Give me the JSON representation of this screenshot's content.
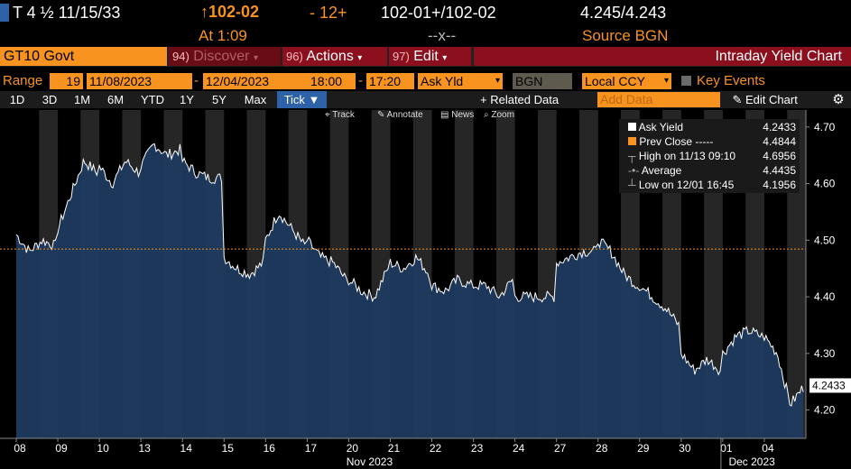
{
  "quote": {
    "security_desc": "T 4 ½  11/15/33",
    "price": "↑102-02",
    "change": "- 12+",
    "bid_ask": "102-01+/102-02",
    "yield_bid_ask": "4.245/4.243",
    "time": "At 1:09",
    "size": "--x--",
    "source": "Source BGN"
  },
  "toolbar": {
    "security": "GT10 Govt",
    "discover_num": "94)",
    "discover_label": "Discover",
    "actions_num": "96)",
    "actions_label": "Actions",
    "edit_num": "97)",
    "edit_label": "Edit",
    "title": "Intraday Yield Chart"
  },
  "range": {
    "label": "Range",
    "days": "19",
    "start_date": "11/08/2023",
    "end_date": "12/04/2023",
    "start_time": "18:00",
    "end_time": "17:20",
    "field": "Ask Yld",
    "source": "BGN",
    "currency": "Local CCY",
    "key_events": "Key Events"
  },
  "periods": [
    "1D",
    "3D",
    "1M",
    "6M",
    "YTD",
    "1Y",
    "5Y",
    "Max"
  ],
  "active_period": "Tick",
  "related_data": "+ Related Data",
  "add_data_placeholder": "Add Data",
  "edit_chart": "Edit Chart",
  "chart_tools": [
    "Track",
    "Annotate",
    "News",
    "Zoom"
  ],
  "legend": {
    "ask_yield_label": "Ask Yield",
    "ask_yield_value": "4.2433",
    "prev_close_label": "Prev Close -----",
    "prev_close_value": "4.4844",
    "high_label": "High on 11/13 09:10",
    "high_value": "4.6956",
    "average_label": "Average",
    "average_value": "4.4435",
    "low_label": "Low on 12/01 16:45",
    "low_value": "4.1956"
  },
  "colors": {
    "accent_orange": "#f7931e",
    "toolbar_red": "#8b0f1c",
    "area_fill": "#1e3a5f",
    "line": "#ffffff",
    "prev_close": "#f7931e",
    "session_shade": "#262626"
  },
  "chart_data": {
    "type": "area",
    "series": [
      {
        "name": "Ask Yield",
        "values": []
      }
    ],
    "x_day_labels": [
      "08",
      "09",
      "10",
      "13",
      "14",
      "15",
      "16",
      "17",
      "20",
      "21",
      "22",
      "23",
      "24",
      "27",
      "28",
      "29",
      "30",
      "01",
      "04"
    ],
    "month_labels": [
      "Nov 2023",
      "Dec 2023"
    ],
    "daily_profile": [
      [
        4.51,
        4.48,
        4.5,
        4.49
      ],
      [
        4.52,
        4.58,
        4.64,
        4.62
      ],
      [
        4.63,
        4.6,
        4.64,
        4.62
      ],
      [
        4.63,
        4.67,
        4.65,
        4.66
      ],
      [
        4.64,
        4.62,
        4.61,
        4.61
      ],
      [
        4.47,
        4.45,
        4.44,
        4.46
      ],
      [
        4.5,
        4.55,
        4.52,
        4.49
      ],
      [
        4.5,
        4.47,
        4.46,
        4.43
      ],
      [
        4.43,
        4.41,
        4.4,
        4.45
      ],
      [
        4.46,
        4.45,
        4.47,
        4.44
      ],
      [
        4.42,
        4.41,
        4.43,
        4.42
      ],
      [
        4.42,
        4.42,
        4.4,
        4.43
      ],
      [
        4.4,
        4.4,
        4.4,
        4.4
      ],
      [
        4.46,
        4.47,
        4.48,
        4.48
      ],
      [
        4.5,
        4.48,
        4.44,
        4.42
      ],
      [
        4.42,
        4.4,
        4.38,
        4.35
      ],
      [
        4.3,
        4.27,
        4.29,
        4.27
      ],
      [
        4.3,
        4.33,
        4.34,
        4.33
      ],
      [
        4.33,
        4.3,
        4.21,
        4.24
      ]
    ],
    "prev_close": 4.4844,
    "last_value": "4.2433",
    "ylim": [
      4.15,
      4.73
    ],
    "y_ticks": [
      "4.20",
      "4.30",
      "4.40",
      "4.50",
      "4.60",
      "4.70"
    ]
  }
}
